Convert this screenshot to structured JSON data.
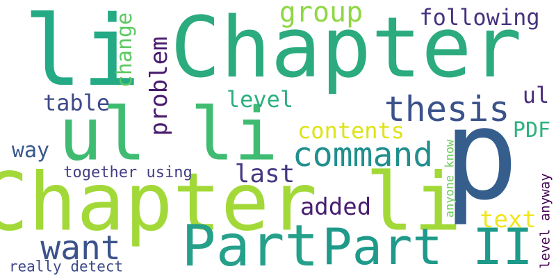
{
  "words": [
    {
      "text": "Chapter",
      "color": "#2bab7e"
    },
    {
      "text": "li",
      "color": "#24aa84"
    },
    {
      "text": "ul li",
      "color": "#3fbc72"
    },
    {
      "text": "Chapter li",
      "color": "#a2d938"
    },
    {
      "text": "p",
      "color": "#355e8d"
    },
    {
      "text": "Part",
      "color": "#25a08a"
    },
    {
      "text": "Part II",
      "color": "#1f9a8a"
    },
    {
      "text": "thesis",
      "color": "#3b528b"
    },
    {
      "text": "command",
      "color": "#218f8d"
    },
    {
      "text": "group",
      "color": "#8fd744"
    },
    {
      "text": "following",
      "color": "#46327e"
    },
    {
      "text": "change",
      "color": "#5ec962"
    },
    {
      "text": "problem",
      "color": "#481b6d"
    },
    {
      "text": "table",
      "color": "#3e4a89"
    },
    {
      "text": "level",
      "color": "#29af7f"
    },
    {
      "text": "ul",
      "color": "#472d7b"
    },
    {
      "text": "contents",
      "color": "#dde318"
    },
    {
      "text": "PDF",
      "color": "#2db27d"
    },
    {
      "text": "way",
      "color": "#38588c"
    },
    {
      "text": "together using",
      "color": "#433e85"
    },
    {
      "text": "last",
      "color": "#453781"
    },
    {
      "text": "added",
      "color": "#481f70"
    },
    {
      "text": "want",
      "color": "#3b528b"
    },
    {
      "text": "text",
      "color": "#f1e51d"
    },
    {
      "text": "anyone know",
      "color": "#6ccd5a"
    },
    {
      "text": "level anyway",
      "color": "#440154"
    },
    {
      "text": "really detect",
      "color": "#3e4a89"
    }
  ]
}
